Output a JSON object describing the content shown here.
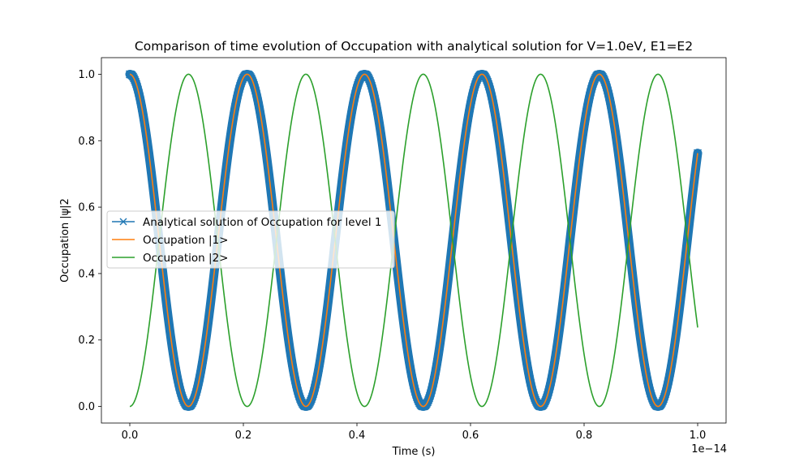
{
  "chart_data": {
    "type": "line",
    "title": "Comparison of time evolution of Occupation with analytical solution for V=1.0eV, E1=E2",
    "xlabel": "Time (s)",
    "ylabel": "Occupation |ψ|2",
    "x_offset_label": "1e−14",
    "xlim": [
      -0.05,
      1.05
    ],
    "ylim": [
      -0.05,
      1.05
    ],
    "x_ticks": [
      0.0,
      0.2,
      0.4,
      0.6,
      0.8,
      1.0
    ],
    "x_tick_labels": [
      "0.0",
      "0.2",
      "0.4",
      "0.6",
      "0.8",
      "1.0"
    ],
    "y_ticks": [
      0.0,
      0.2,
      0.4,
      0.6,
      0.8,
      1.0
    ],
    "y_tick_labels": [
      "0.0",
      "0.2",
      "0.4",
      "0.6",
      "0.8",
      "1.0"
    ],
    "grid": false,
    "legend_position": "center-left",
    "series": [
      {
        "name": "Analytical solution of Occupation for level 1",
        "color": "#1f77b4",
        "marker": "x",
        "formula": "cos^2(pi*t/0.2067)",
        "x_range": [
          0.0,
          1.0
        ],
        "keypoints": {
          "x": [
            0.0,
            0.1033,
            0.2067,
            0.31,
            0.4133,
            0.5167,
            0.62,
            0.7233,
            0.8267,
            0.93,
            1.0
          ],
          "y": [
            1.0,
            0.0,
            1.0,
            0.0,
            1.0,
            0.0,
            1.0,
            0.0,
            1.0,
            0.0,
            0.74
          ]
        }
      },
      {
        "name": "Occupation |1>",
        "color": "#ff7f0e",
        "formula": "cos^2(pi*t/0.2067)",
        "x_range": [
          0.0,
          1.0
        ],
        "keypoints": {
          "x": [
            0.0,
            0.1033,
            0.2067,
            0.31,
            0.4133,
            0.5167,
            0.62,
            0.7233,
            0.8267,
            0.93,
            1.0
          ],
          "y": [
            1.0,
            0.0,
            1.0,
            0.0,
            1.0,
            0.0,
            1.0,
            0.0,
            1.0,
            0.0,
            0.74
          ]
        }
      },
      {
        "name": "Occupation |2>",
        "color": "#2ca02c",
        "formula": "sin^2(pi*t/0.2067)",
        "x_range": [
          0.0,
          1.0
        ],
        "keypoints": {
          "x": [
            0.0,
            0.1033,
            0.2067,
            0.31,
            0.4133,
            0.5167,
            0.62,
            0.7233,
            0.8267,
            0.93,
            1.0
          ],
          "y": [
            0.0,
            1.0,
            0.0,
            1.0,
            0.0,
            1.0,
            0.0,
            1.0,
            0.0,
            1.0,
            0.26
          ]
        }
      }
    ]
  }
}
